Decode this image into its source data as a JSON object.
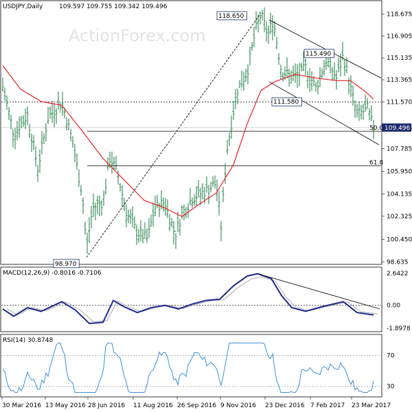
{
  "chart_data": [
    {
      "type": "candlestick",
      "title": "USDJPY,Daily",
      "ohlc_header": "109.597 109.755 109.342 109.496",
      "watermark": "ActionForex.com",
      "y_ticks": [
        "118.675",
        "116.905",
        "115.135",
        "113.365",
        "111.570",
        "109.496",
        "107.785",
        "105.950",
        "104.135",
        "102.325",
        "100.450",
        "98.635"
      ],
      "y_range": [
        98.0,
        119.5
      ],
      "x_labels": [
        "30 Mar 2016",
        "13 May 2016",
        "28 Jun 2016",
        "11 Aug 2016",
        "26 Sep 2016",
        "9 Nov 2016",
        "23 Dec 2016",
        "7 Feb 2017",
        "23 Mar 2017"
      ],
      "annotations": [
        {
          "label": "118.650",
          "value": 118.65
        },
        {
          "label": "115.490",
          "value": 115.49
        },
        {
          "label": "111.580",
          "value": 111.58
        },
        {
          "label": "98.970",
          "value": 98.97
        },
        {
          "label": "50.0",
          "value": 109.2
        },
        {
          "label": "61.8",
          "value": 106.4
        }
      ],
      "current_price": "109.496",
      "reference_line": "111.570",
      "colors": {
        "candle": "#1a7a3c",
        "sma": "#e8202a",
        "trend": "#000000",
        "price_box": "#1a2a6c"
      }
    },
    {
      "type": "line",
      "title": "MACD(12,26,9) -0.8016 -0.7106",
      "y_ticks": [
        "2.6422",
        "0.00",
        "-1.8978"
      ],
      "series": [
        {
          "name": "MACD"
        },
        {
          "name": "Signal"
        }
      ]
    },
    {
      "type": "line",
      "title": "RSI(14) 30.8748",
      "y_ticks": [
        "70",
        "30"
      ]
    }
  ]
}
